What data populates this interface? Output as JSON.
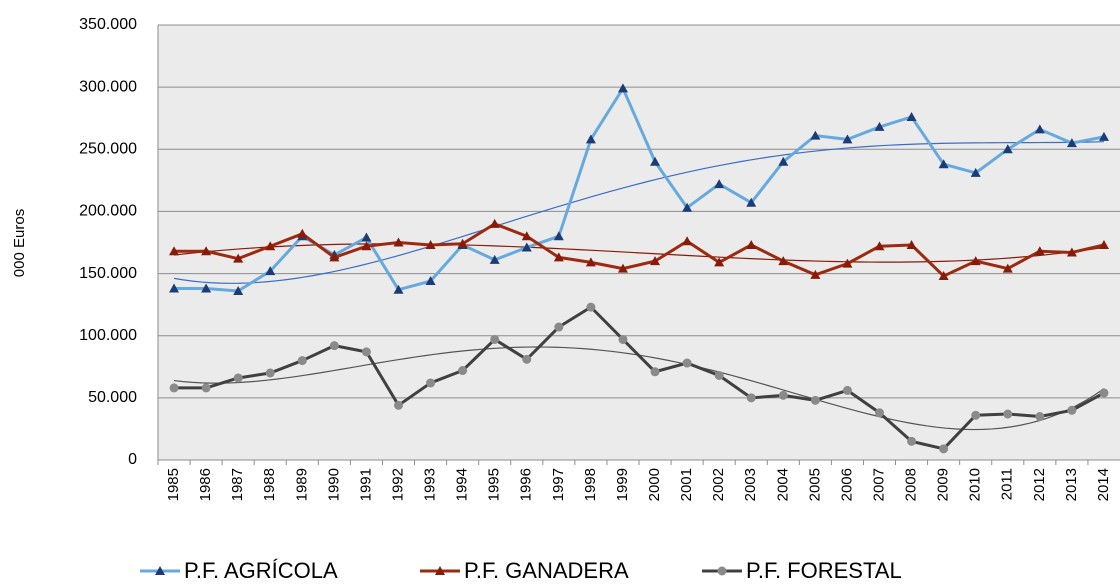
{
  "chart_data": {
    "type": "line",
    "y_label": "000 Euros",
    "categories": [
      "1985",
      "1986",
      "1987",
      "1988",
      "1989",
      "1990",
      "1991",
      "1992",
      "1993",
      "1994",
      "1995",
      "1996",
      "1997",
      "1998",
      "1999",
      "2000",
      "2001",
      "2002",
      "2003",
      "2004",
      "2005",
      "2006",
      "2007",
      "2008",
      "2009",
      "2010",
      "2011",
      "2012",
      "2013",
      "2014"
    ],
    "series": [
      {
        "name": "P.F. AGRÍCOLA",
        "color": "#65a9df",
        "marker": "triangle",
        "marker_color": "#1c3c78",
        "trend_color": "#3a6cc8",
        "values": [
          138000,
          138000,
          136000,
          152000,
          180000,
          165000,
          179000,
          137000,
          144000,
          173000,
          161000,
          171000,
          180000,
          258000,
          299000,
          240000,
          203000,
          222000,
          207000,
          240000,
          261000,
          258000,
          268000,
          276000,
          238000,
          231000,
          250000,
          266000,
          255000,
          260000
        ]
      },
      {
        "name": "P.F. GANADERA",
        "color": "#9c2a10",
        "marker": "triangle",
        "marker_color": "#8a1a08",
        "trend_color": "#8a1a08",
        "values": [
          168000,
          168000,
          162000,
          172000,
          182000,
          163000,
          172000,
          175000,
          173000,
          174000,
          190000,
          180000,
          163000,
          159000,
          154000,
          160000,
          176000,
          159000,
          173000,
          160000,
          149000,
          158000,
          172000,
          173000,
          148000,
          160000,
          154000,
          168000,
          167000,
          173000
        ]
      },
      {
        "name": "P.F. FORESTAL",
        "color": "#404040",
        "marker": "circle",
        "marker_color": "#8a8a8a",
        "trend_color": "#555555",
        "values": [
          58000,
          58000,
          66000,
          70000,
          80000,
          92000,
          87000,
          44000,
          62000,
          72000,
          97000,
          81000,
          107000,
          123000,
          97000,
          71000,
          78000,
          68000,
          50000,
          52000,
          48000,
          56000,
          38000,
          15000,
          9000,
          36000,
          37000,
          35000,
          40000,
          54000
        ]
      }
    ],
    "trendline_degree": 4,
    "ylim": [
      0,
      350000
    ],
    "yticks": [
      0,
      {
        "value": 50000,
        "label": "50.000"
      },
      {
        "value": 100000,
        "label": "100.000"
      },
      {
        "value": 150000,
        "label": "150.000"
      },
      {
        "value": 200000,
        "label": "200.000"
      },
      {
        "value": 250000,
        "label": "250.000"
      },
      {
        "value": 300000,
        "label": "300.000"
      },
      {
        "value": 350000,
        "label": "350.000"
      }
    ],
    "grid": true,
    "legend": "bottom"
  }
}
